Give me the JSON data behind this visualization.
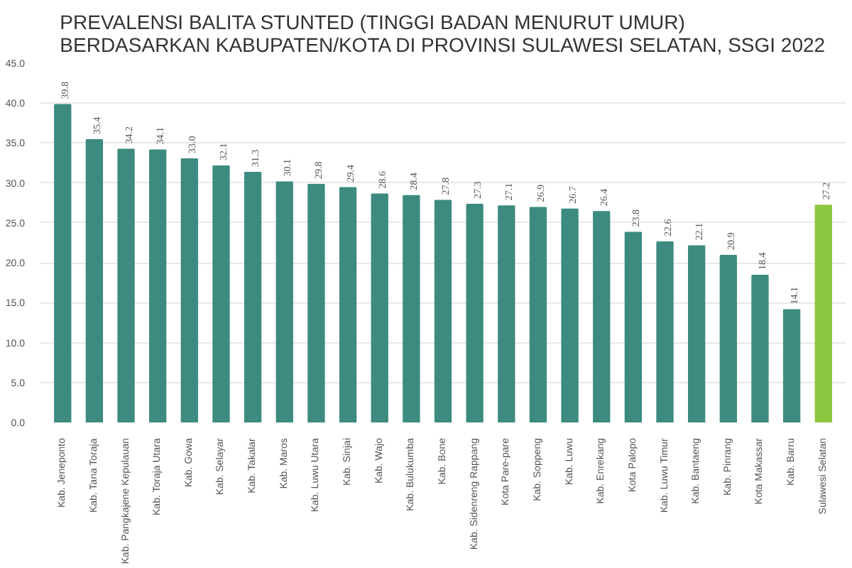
{
  "chart_data": {
    "type": "bar",
    "title": "PREVALENSI BALITA STUNTED (TINGGI BADAN MENURUT UMUR)\nBERDASARKAN KABUPATEN/KOTA DI PROVINSI SULAWESI SELATAN, SSGI 2022",
    "categories": [
      "Kab. Jeneponto",
      "Kab. Tana Toraja",
      "Kab. Pangkajene Kepulauan",
      "Kab. Toraja Utara",
      "Kab. Gowa",
      "Kab. Selayar",
      "Kab. Takalar",
      "Kab. Maros",
      "Kab. Luwu Utara",
      "Kab. Sinjai",
      "Kab. Wajo",
      "Kab. Bulukumba",
      "Kab. Bone",
      "Kab. Sidenreng Rappang",
      "Kota Pare-pare",
      "Kab. Soppeng",
      "Kab. Luwu",
      "Kab. Enrekang",
      "Kota Palopo",
      "Kab. Luwu Timur",
      "Kab. Bantaeng",
      "Kab. Pinrang",
      "Kota Makassar",
      "Kab. Barru",
      "Sulawesi Selatan"
    ],
    "values": [
      39.8,
      35.4,
      34.2,
      34.1,
      33.0,
      32.1,
      31.3,
      30.1,
      29.8,
      29.4,
      28.6,
      28.4,
      27.8,
      27.3,
      27.1,
      26.9,
      26.7,
      26.4,
      23.8,
      22.6,
      22.1,
      20.9,
      18.4,
      14.1,
      27.2
    ],
    "colors": [
      "#3d8b80",
      "#3d8b80",
      "#3d8b80",
      "#3d8b80",
      "#3d8b80",
      "#3d8b80",
      "#3d8b80",
      "#3d8b80",
      "#3d8b80",
      "#3d8b80",
      "#3d8b80",
      "#3d8b80",
      "#3d8b80",
      "#3d8b80",
      "#3d8b80",
      "#3d8b80",
      "#3d8b80",
      "#3d8b80",
      "#3d8b80",
      "#3d8b80",
      "#3d8b80",
      "#3d8b80",
      "#3d8b80",
      "#3d8b80",
      "#8dc63f"
    ],
    "value_labels": [
      "39.8",
      "35.4",
      "34.2",
      "34.1",
      "33.0",
      "32.1",
      "31.3",
      "30.1",
      "29.8",
      "29.4",
      "28.6",
      "28.4",
      "27.8",
      "27.3",
      "27.1",
      "26.9",
      "26.7",
      "26.4",
      "23.8",
      "22.6",
      "22.1",
      "20.9",
      "18.4",
      "14.1",
      "27.2"
    ],
    "ylim": [
      0,
      45
    ],
    "yticks": [
      {
        "value": 0,
        "label": "0.0"
      },
      {
        "value": 5,
        "label": "5.0"
      },
      {
        "value": 10,
        "label": "10.0"
      },
      {
        "value": 15,
        "label": "15.0"
      },
      {
        "value": 20,
        "label": "20.0"
      },
      {
        "value": 25,
        "label": "25.0"
      },
      {
        "value": 30,
        "label": "30.0"
      },
      {
        "value": 35,
        "label": "35.0"
      },
      {
        "value": 40,
        "label": "40.0"
      },
      {
        "value": 45,
        "label": "45.0"
      }
    ],
    "grid": "y"
  }
}
